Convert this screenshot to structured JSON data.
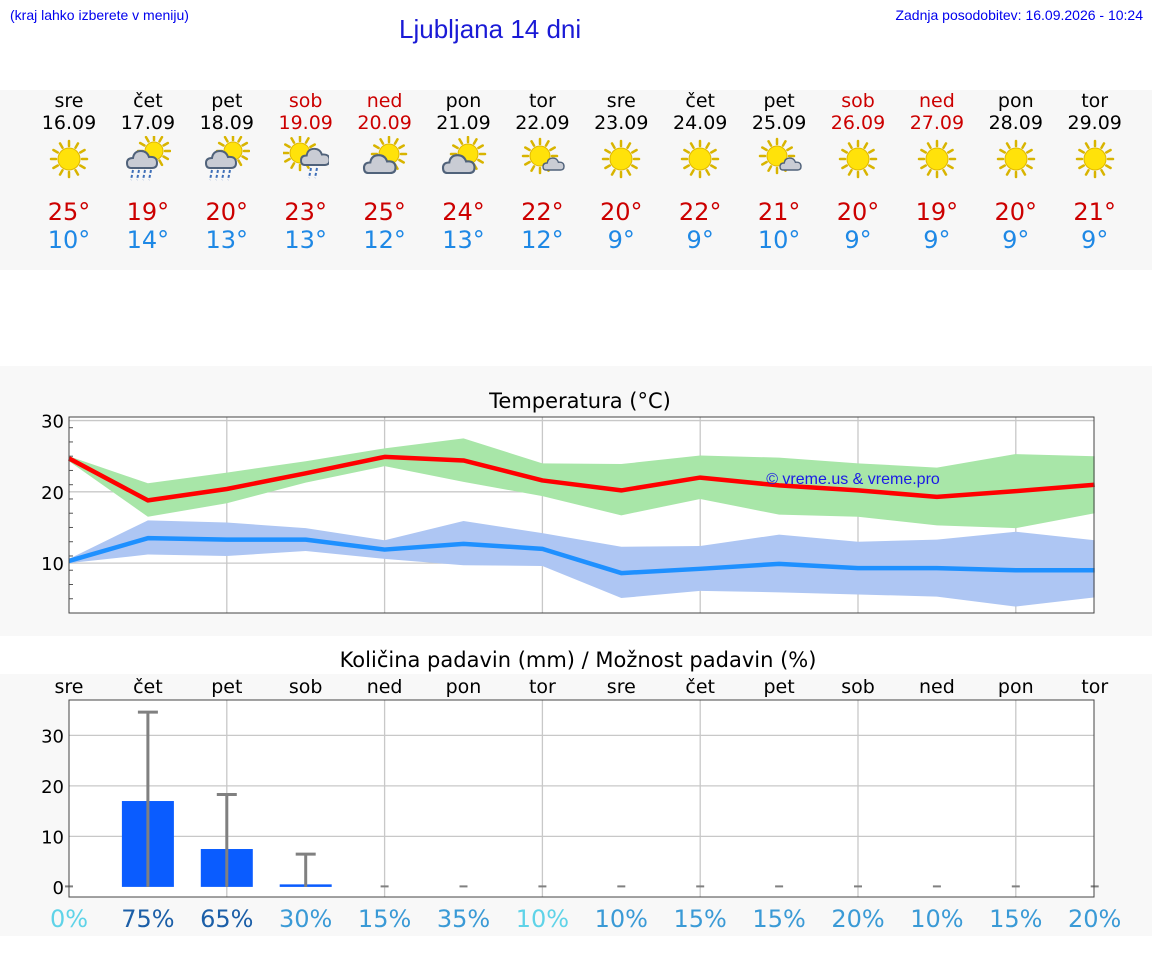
{
  "header": {
    "left_note": "(kraj lahko izberete v meniju)",
    "title": "Ljubljana 14 dni",
    "updated": "Zadnja posodobitev: 16.09.2026 - 10:24"
  },
  "days": [
    {
      "name": "sre",
      "date": "16.09",
      "icon": "sun-icon",
      "max": "25°",
      "min": "10°",
      "weekend": false
    },
    {
      "name": "čet",
      "date": "17.09",
      "icon": "sun-cloud-rain-icon",
      "max": "19°",
      "min": "14°",
      "weekend": false
    },
    {
      "name": "pet",
      "date": "18.09",
      "icon": "sun-cloud-rain-icon",
      "max": "20°",
      "min": "13°",
      "weekend": false
    },
    {
      "name": "sob",
      "date": "19.09",
      "icon": "sun-cloud-drizzle-icon",
      "max": "23°",
      "min": "13°",
      "weekend": true
    },
    {
      "name": "ned",
      "date": "20.09",
      "icon": "sun-cloud-icon",
      "max": "25°",
      "min": "12°",
      "weekend": true
    },
    {
      "name": "pon",
      "date": "21.09",
      "icon": "sun-cloud-icon",
      "max": "24°",
      "min": "13°",
      "weekend": false
    },
    {
      "name": "tor",
      "date": "22.09",
      "icon": "sun-small-cloud-icon",
      "max": "22°",
      "min": "12°",
      "weekend": false
    },
    {
      "name": "sre",
      "date": "23.09",
      "icon": "sun-icon",
      "max": "20°",
      "min": "9°",
      "weekend": false
    },
    {
      "name": "čet",
      "date": "24.09",
      "icon": "sun-icon",
      "max": "22°",
      "min": "9°",
      "weekend": false
    },
    {
      "name": "pet",
      "date": "25.09",
      "icon": "sun-small-cloud-icon",
      "max": "21°",
      "min": "10°",
      "weekend": false
    },
    {
      "name": "sob",
      "date": "26.09",
      "icon": "sun-icon",
      "max": "20°",
      "min": "9°",
      "weekend": true
    },
    {
      "name": "ned",
      "date": "27.09",
      "icon": "sun-icon",
      "max": "19°",
      "min": "9°",
      "weekend": true
    },
    {
      "name": "pon",
      "date": "28.09",
      "icon": "sun-icon",
      "max": "20°",
      "min": "9°",
      "weekend": false
    },
    {
      "name": "tor",
      "date": "29.09",
      "icon": "sun-icon",
      "max": "21°",
      "min": "9°",
      "weekend": false
    }
  ],
  "chart_data": [
    {
      "type": "line",
      "title": "Temperatura (°C)",
      "x": [
        "sre",
        "čet",
        "pet",
        "sob",
        "ned",
        "pon",
        "tor",
        "sre",
        "čet",
        "pet",
        "sob",
        "ned",
        "pon",
        "tor"
      ],
      "ylim": [
        3,
        30.5
      ],
      "yticks": [
        10,
        20,
        30
      ],
      "grid": true,
      "watermark": "© vreme.us & vreme.pro",
      "series": [
        {
          "role": "max-line",
          "color": "#ff0000",
          "values": [
            24.7,
            18.8,
            20.4,
            22.6,
            24.9,
            24.4,
            21.6,
            20.2,
            22.0,
            20.9,
            20.2,
            19.3,
            20.1,
            21.0
          ]
        },
        {
          "role": "max-band-high",
          "color": "#a8e6a8",
          "values": [
            25.0,
            21.2,
            22.7,
            24.3,
            26.1,
            27.5,
            24.0,
            23.9,
            25.1,
            24.8,
            24.0,
            23.4,
            25.3,
            25.0
          ]
        },
        {
          "role": "max-band-low",
          "color": "#a8e6a8",
          "values": [
            24.3,
            16.5,
            18.4,
            21.3,
            23.6,
            21.4,
            19.4,
            16.7,
            19.0,
            16.8,
            16.5,
            15.3,
            14.9,
            17.0
          ]
        },
        {
          "role": "min-line",
          "color": "#1e90ff",
          "values": [
            10.3,
            13.5,
            13.3,
            13.3,
            11.9,
            12.7,
            12.0,
            8.6,
            9.2,
            9.9,
            9.3,
            9.3,
            9.0,
            9.0
          ]
        },
        {
          "role": "min-band-high",
          "color": "#aec6f3",
          "values": [
            10.6,
            16.0,
            15.7,
            14.9,
            13.2,
            15.9,
            14.2,
            12.3,
            12.4,
            14.0,
            13.0,
            13.3,
            14.4,
            13.2
          ]
        },
        {
          "role": "min-band-low",
          "color": "#aec6f3",
          "values": [
            10.0,
            11.2,
            11.0,
            11.7,
            10.6,
            9.7,
            9.6,
            5.1,
            6.1,
            5.9,
            5.6,
            5.3,
            3.9,
            5.2
          ]
        }
      ]
    },
    {
      "type": "bar",
      "title": "Količina padavin (mm) / Možnost padavin (%)",
      "categories": [
        "sre",
        "čet",
        "pet",
        "sob",
        "ned",
        "pon",
        "tor",
        "sre",
        "čet",
        "pet",
        "sob",
        "ned",
        "pon",
        "tor"
      ],
      "ylim": [
        -2,
        37
      ],
      "yticks": [
        0,
        10,
        20,
        30
      ],
      "grid": true,
      "bar_color": "#0a5cff",
      "values": [
        0,
        17.0,
        7.5,
        0.5,
        0,
        0,
        0,
        0,
        0,
        0,
        0,
        0,
        0,
        0
      ],
      "range_max": [
        0,
        34.6,
        18.3,
        6.5,
        0,
        0,
        0,
        0,
        0,
        0,
        0,
        0,
        0,
        0
      ],
      "chance": [
        "0%",
        "75%",
        "65%",
        "30%",
        "15%",
        "35%",
        "10%",
        "10%",
        "15%",
        "15%",
        "20%",
        "10%",
        "15%",
        "20%"
      ],
      "chance_colors": [
        "#5fd3e8",
        "#1c5fa8",
        "#1c5fa8",
        "#3a9ad6",
        "#3a9ad6",
        "#3a9ad6",
        "#5fd3e8",
        "#3a9ad6",
        "#3a9ad6",
        "#3a9ad6",
        "#3a9ad6",
        "#3a9ad6",
        "#3a9ad6",
        "#3a9ad6"
      ]
    }
  ]
}
